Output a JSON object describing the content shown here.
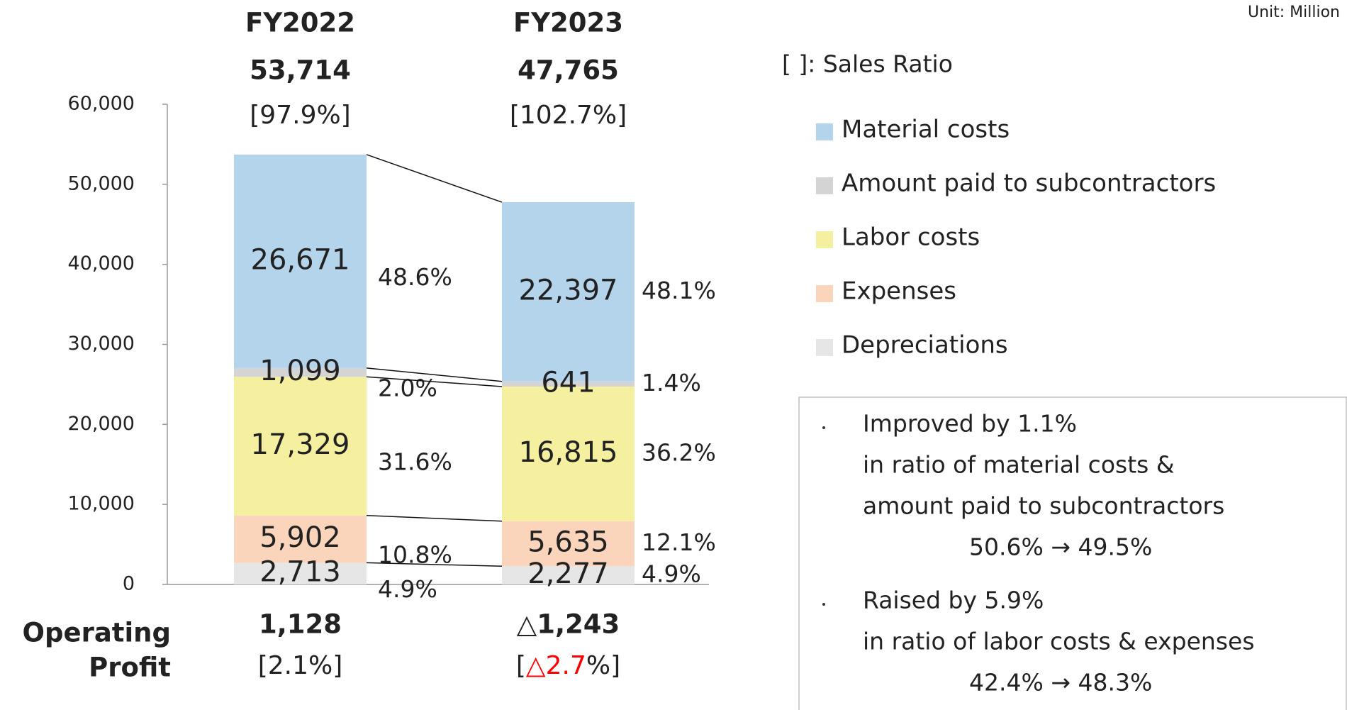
{
  "chart_data": {
    "type": "bar",
    "stacked": true,
    "unit_note": "Unit: Million",
    "categories": [
      "FY2022",
      "FY2023"
    ],
    "total_labels": [
      "53,714",
      "47,765"
    ],
    "total_ratio_labels": [
      "[97.9%]",
      "[102.7%]"
    ],
    "legend_title": "[    ]: Sales Ratio",
    "series": [
      {
        "name": "Material costs",
        "color": "#b4d4ec",
        "values": [
          26671,
          22397
        ],
        "value_labels": [
          "26,671",
          "22,397"
        ],
        "ratio_labels": [
          "48.6%",
          "48.1%"
        ]
      },
      {
        "name": "Amount paid to subcontractors",
        "color": "#d4d4d4",
        "values": [
          1099,
          641
        ],
        "value_labels": [
          "1,099",
          "641"
        ],
        "ratio_labels": [
          "2.0%",
          "1.4%"
        ]
      },
      {
        "name": "Labor costs",
        "color": "#f5f0a0",
        "values": [
          17329,
          16815
        ],
        "value_labels": [
          "17,329",
          "16,815"
        ],
        "ratio_labels": [
          "31.6%",
          "36.2%"
        ]
      },
      {
        "name": "Expenses",
        "color": "#fad5bc",
        "values": [
          5902,
          5635
        ],
        "value_labels": [
          "5,902",
          "5,635"
        ],
        "ratio_labels": [
          "10.8%",
          "12.1%"
        ]
      },
      {
        "name": "Depreciations",
        "color": "#e6e6e6",
        "values": [
          2713,
          2277
        ],
        "value_labels": [
          "2,713",
          "2,277"
        ],
        "ratio_labels": [
          "4.9%",
          "4.9%"
        ]
      }
    ],
    "ylim": [
      0,
      60000
    ],
    "yticks": [
      0,
      {
        "value": 10000,
        "label": "10,000"
      },
      {
        "value": 20000,
        "label": "20,000"
      },
      {
        "value": 30000,
        "label": "30,000"
      },
      {
        "value": 40000,
        "label": "40,000"
      },
      {
        "value": 50000,
        "label": "50,000"
      },
      {
        "value": 60000,
        "label": "60,000"
      }
    ],
    "operating_profit": {
      "label_lines": [
        "Operating",
        "Profit"
      ],
      "value_labels": [
        "1,128",
        "△1,243"
      ],
      "value_colors": [
        "#222222",
        "#ff0000"
      ],
      "ratio_parts": [
        [
          {
            "text": "[2.1%]",
            "color": "#222222"
          }
        ],
        [
          {
            "text": "[",
            "color": "#222222"
          },
          {
            "text": "△2.7",
            "color": "#ff0000"
          },
          {
            "text": "%]",
            "color": "#222222"
          }
        ]
      ]
    },
    "notes": [
      {
        "lines": [
          "Improved by 1.1%",
          "in ratio of material costs &",
          "amount paid to subcontractors"
        ],
        "result": "50.6% → 49.5%"
      },
      {
        "lines": [
          "Raised by 5.9%",
          "in ratio of labor costs & expenses"
        ],
        "result": "42.4% → 48.3%"
      }
    ]
  }
}
